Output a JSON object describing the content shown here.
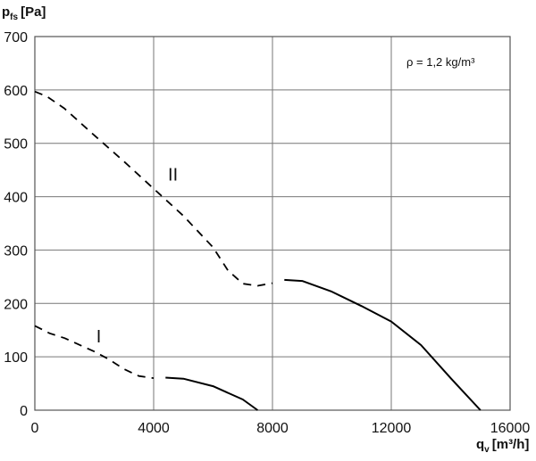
{
  "chart_data": {
    "type": "line",
    "ylabel": {
      "main": "p",
      "sub": "fs",
      "unit": "[Pa]"
    },
    "xlabel": {
      "main": "q",
      "sub": "v",
      "unit": "[m³/h]"
    },
    "xlim": [
      0,
      16000
    ],
    "ylim": [
      0,
      700
    ],
    "xticks": [
      0,
      4000,
      8000,
      12000,
      16000
    ],
    "yticks": [
      0,
      100,
      200,
      300,
      400,
      500,
      600,
      700
    ],
    "xtick_labels": [
      "0",
      "4000",
      "8000",
      "12000",
      "16000"
    ],
    "ytick_labels": [
      "0",
      "100",
      "200",
      "300",
      "400",
      "500",
      "600",
      "700"
    ],
    "grid": true,
    "annotation": "ρ = 1,2 kg/m³",
    "series": [
      {
        "label": "II",
        "label_at": [
          4650,
          430
        ],
        "dashed": [
          [
            0,
            597
          ],
          [
            400,
            588
          ],
          [
            1000,
            565
          ],
          [
            2000,
            515
          ],
          [
            3000,
            466
          ],
          [
            4000,
            415
          ],
          [
            5000,
            364
          ],
          [
            6000,
            305
          ],
          [
            6500,
            262
          ],
          [
            7000,
            237
          ],
          [
            7500,
            233
          ],
          [
            8000,
            238
          ]
        ],
        "solid": [
          [
            8400,
            244
          ],
          [
            9000,
            242
          ],
          [
            10000,
            222
          ],
          [
            11000,
            195
          ],
          [
            12000,
            166
          ],
          [
            13000,
            122
          ],
          [
            14000,
            60
          ],
          [
            15000,
            0
          ]
        ]
      },
      {
        "label": "I",
        "label_at": [
          2150,
          127
        ],
        "dashed": [
          [
            0,
            158
          ],
          [
            500,
            144
          ],
          [
            1000,
            135
          ],
          [
            2000,
            110
          ],
          [
            2500,
            95
          ],
          [
            3000,
            77
          ],
          [
            3500,
            64
          ],
          [
            4000,
            60
          ]
        ],
        "solid": [
          [
            4400,
            61
          ],
          [
            5000,
            59
          ],
          [
            6000,
            45
          ],
          [
            7000,
            20
          ],
          [
            7500,
            0
          ]
        ]
      }
    ]
  }
}
